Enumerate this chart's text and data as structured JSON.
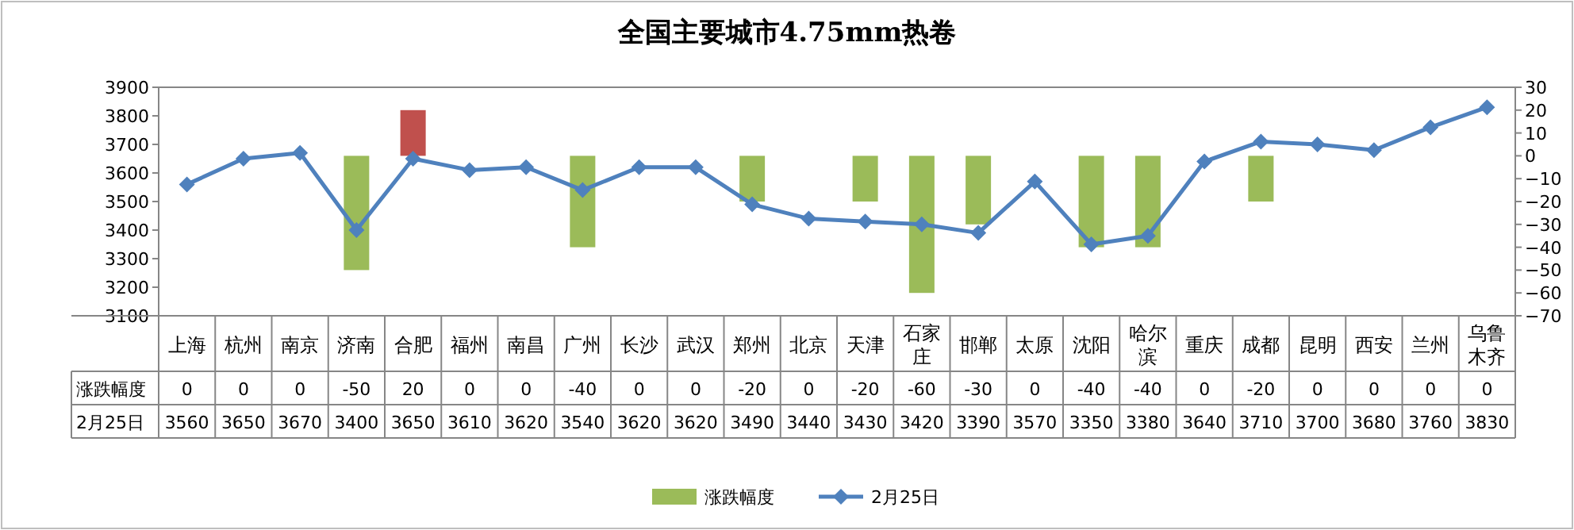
{
  "chart_data": {
    "type": "bar",
    "title": "全国主要城市4.75mm热卷",
    "categories": [
      "上海",
      "杭州",
      "南京",
      "济南",
      "合肥",
      "福州",
      "南昌",
      "广州",
      "长沙",
      "武汉",
      "郑州",
      "北京",
      "天津",
      "石家庄",
      "邯郸",
      "太原",
      "沈阳",
      "哈尔滨",
      "重庆",
      "成都",
      "昆明",
      "西安",
      "兰州",
      "乌鲁木齐"
    ],
    "series": [
      {
        "name": "涨跌幅度",
        "axis": "y2",
        "color": "#9bbb59",
        "colors": [
          "#9bbb59",
          "#9bbb59",
          "#9bbb59",
          "#9bbb59",
          "#c0504d",
          "#9bbb59",
          "#9bbb59",
          "#9bbb59",
          "#9bbb59",
          "#9bbb59",
          "#9bbb59",
          "#9bbb59",
          "#9bbb59",
          "#9bbb59",
          "#9bbb59",
          "#9bbb59",
          "#9bbb59",
          "#9bbb59",
          "#9bbb59",
          "#9bbb59",
          "#9bbb59",
          "#9bbb59",
          "#9bbb59",
          "#9bbb59"
        ],
        "values": [
          0,
          0,
          0,
          -50,
          20,
          0,
          0,
          -40,
          0,
          0,
          -20,
          0,
          -20,
          -60,
          -30,
          0,
          -40,
          -40,
          0,
          -20,
          0,
          0,
          0,
          0
        ]
      },
      {
        "name": "2月25日",
        "type": "line",
        "color": "#4f81bd",
        "marker": "diamond",
        "values": [
          3560,
          3650,
          3670,
          3400,
          3650,
          3610,
          3620,
          3540,
          3620,
          3620,
          3490,
          3440,
          3430,
          3420,
          3390,
          3570,
          3350,
          3380,
          3640,
          3710,
          3700,
          3680,
          3760,
          3830
        ]
      }
    ],
    "ylim": [
      3100,
      3900
    ],
    "yticks": [
      3100,
      3200,
      3300,
      3400,
      3500,
      3600,
      3700,
      3800,
      3900
    ],
    "y2lim": [
      -70,
      30
    ],
    "y2ticks": [
      -70,
      -60,
      -50,
      -40,
      -30,
      -20,
      -10,
      0,
      10,
      20,
      30
    ],
    "data_labels": true,
    "legend": "bottom"
  }
}
